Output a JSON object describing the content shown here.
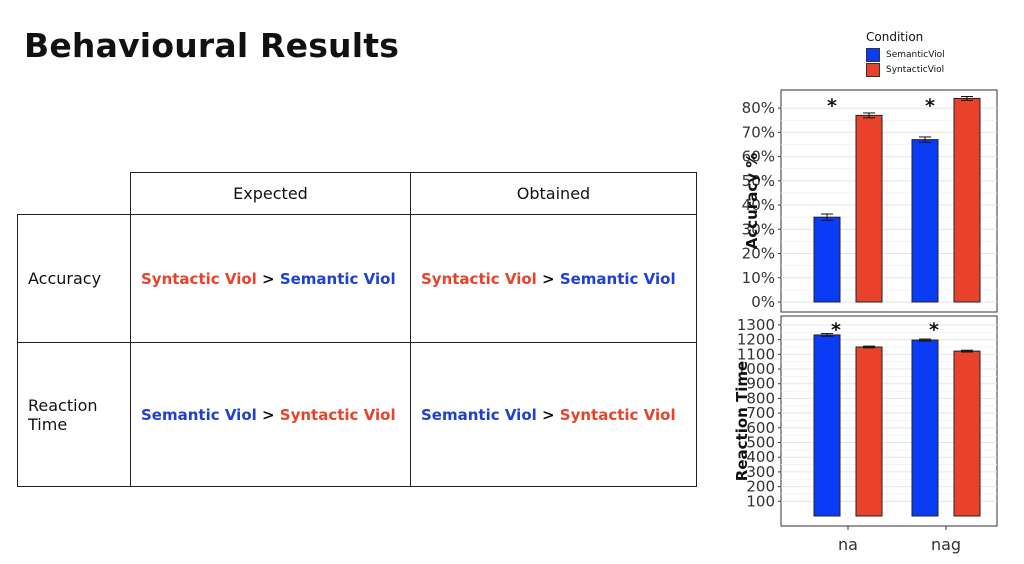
{
  "title": "Behavioural Results",
  "table": {
    "headers": [
      "Expected",
      "Obtained"
    ],
    "rows": [
      {
        "label": "Accuracy",
        "expected": {
          "left": "Syntactic Viol",
          "op": " > ",
          "right": "Semantic Viol"
        },
        "obtained": {
          "left": "Syntactic Viol",
          "op": " > ",
          "right": "Semantic Viol"
        }
      },
      {
        "label": "Reaction\nTime",
        "expected": {
          "left": "Semantic Viol",
          "op": " > ",
          "right": "Syntactic Viol"
        },
        "obtained": {
          "left": "Semantic Viol",
          "op": " > ",
          "right": "Syntactic Viol"
        }
      }
    ]
  },
  "legend": {
    "title": "Condition",
    "items": [
      {
        "label": "SemanticViol",
        "color": "#0a3cf5"
      },
      {
        "label": "SyntacticViol",
        "color": "#e8432a"
      }
    ]
  },
  "chart_data": [
    {
      "type": "bar",
      "ylabel": "Accuracy %",
      "categories": [
        "na",
        "nag"
      ],
      "series": [
        {
          "name": "SemanticViol",
          "values": [
            35,
            67
          ],
          "error": [
            1.3,
            1.1
          ]
        },
        {
          "name": "SyntacticViol",
          "values": [
            77,
            84
          ],
          "error": [
            1.0,
            0.8
          ]
        }
      ],
      "ylim": [
        0,
        85
      ],
      "yticks": [
        "0%",
        "10%",
        "20%",
        "30%",
        "40%",
        "50%",
        "60%",
        "70%",
        "80%"
      ],
      "ytick_values": [
        0,
        10,
        20,
        30,
        40,
        50,
        60,
        70,
        80
      ],
      "significance": [
        "*",
        "*"
      ],
      "grid": true,
      "show_xticks": false
    },
    {
      "type": "bar",
      "ylabel": "Reaction Time",
      "categories": [
        "na",
        "nag"
      ],
      "series": [
        {
          "name": "SemanticViol",
          "values": [
            1232,
            1197
          ],
          "error": [
            9,
            7
          ]
        },
        {
          "name": "SyntacticViol",
          "values": [
            1150,
            1122
          ],
          "error": [
            6,
            6
          ]
        }
      ],
      "ylim": [
        0,
        1320
      ],
      "yticks": [
        "100",
        "200",
        "300",
        "400",
        "500",
        "600",
        "700",
        "800",
        "900",
        "1000",
        "1100",
        "1200",
        "1300"
      ],
      "ytick_values": [
        100,
        200,
        300,
        400,
        500,
        600,
        700,
        800,
        900,
        1000,
        1100,
        1200,
        1300
      ],
      "significance": [
        "*",
        "*"
      ],
      "grid": true,
      "show_xticks": true
    }
  ]
}
